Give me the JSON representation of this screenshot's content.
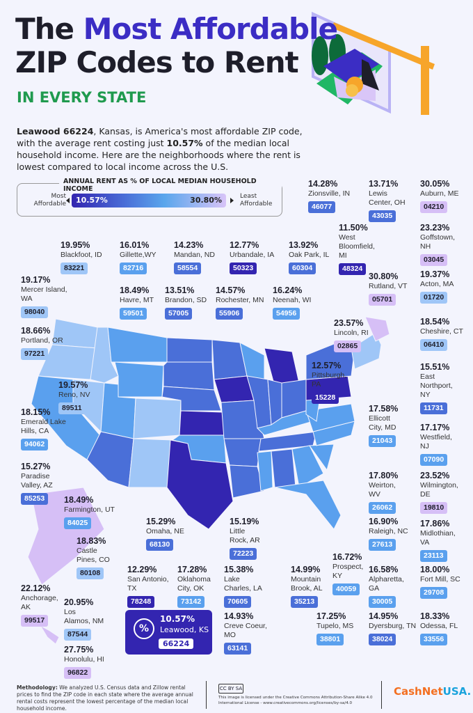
{
  "header": {
    "title_line1_pre": "The ",
    "title_line1_accent": "Most Affordable",
    "title_line2": "ZIP Codes to Rent",
    "subtitle": "IN EVERY STATE",
    "intro": [
      {
        "text": "Leawood 66224",
        "bold": true
      },
      {
        "text": ", Kansas, is America's most affordable ZIP code, with the average rent costing just ",
        "bold": false
      },
      {
        "text": "10.57%",
        "bold": true
      },
      {
        "text": " of the median local household income. Here are the neighborhoods where the rent is lowest compared to local income across the U.S.",
        "bold": false
      }
    ]
  },
  "legend": {
    "title": "ANNUAL RENT AS % OF LOCAL MEDIAN HOUSEHOLD INCOME",
    "left_label": "Most\nAffordable",
    "right_label": "Least\nAffordable",
    "min": "10.57%",
    "max": "30.80%"
  },
  "colors": {
    "background": "#f3f4fd",
    "accent": "#3b2dc4",
    "green": "#1f9a4e",
    "scale_low": "#3325b0",
    "scale_mid": "#5aa6ec",
    "scale_high": "#d8c4f8"
  },
  "chart_data": {
    "type": "choropleth-map",
    "title": "The Most Affordable ZIP Codes to Rent in Every State",
    "value_label": "Annual rent as % of local median household income",
    "range": [
      10.57,
      30.8
    ],
    "entries": [
      {
        "pct": "19.95%",
        "value": 19.95,
        "place": "Blackfoot, ID",
        "zip": "83221"
      },
      {
        "pct": "16.01%",
        "value": 16.01,
        "place": "Gillette,WY",
        "zip": "82716"
      },
      {
        "pct": "14.23%",
        "value": 14.23,
        "place": "Mandan, ND",
        "zip": "58554"
      },
      {
        "pct": "12.77%",
        "value": 12.77,
        "place": "Urbandale, IA",
        "zip": "50323"
      },
      {
        "pct": "13.92%",
        "value": 13.92,
        "place": "Oak Park, IL",
        "zip": "60304"
      },
      {
        "pct": "14.28%",
        "value": 14.28,
        "place": "Zionsville, IN",
        "zip": "46077"
      },
      {
        "pct": "11.50%",
        "value": 11.5,
        "place": "West\nBloomfield,\nMI",
        "zip": "48324"
      },
      {
        "pct": "13.71%",
        "value": 13.71,
        "place": "Lewis\nCenter, OH",
        "zip": "43035"
      },
      {
        "pct": "30.05%",
        "value": 30.05,
        "place": "Auburn, ME",
        "zip": "04210"
      },
      {
        "pct": "23.23%",
        "value": 23.23,
        "place": "Goffstown,\nNH",
        "zip": "03045"
      },
      {
        "pct": "19.37%",
        "value": 19.37,
        "place": "Acton, MA",
        "zip": "01720"
      },
      {
        "pct": "18.54%",
        "value": 18.54,
        "place": "Cheshire, CT",
        "zip": "06410"
      },
      {
        "pct": "15.51%",
        "value": 15.51,
        "place": "East\nNorthport,\nNY",
        "zip": "11731"
      },
      {
        "pct": "17.17%",
        "value": 17.17,
        "place": "Westfield,\nNJ",
        "zip": "07090"
      },
      {
        "pct": "23.52%",
        "value": 23.52,
        "place": "Wilmington,\nDE",
        "zip": "19810"
      },
      {
        "pct": "17.86%",
        "value": 17.86,
        "place": "Midlothian,\nVA",
        "zip": "23113"
      },
      {
        "pct": "18.00%",
        "value": 18.0,
        "place": "Fort Mill, SC",
        "zip": "29708"
      },
      {
        "pct": "18.33%",
        "value": 18.33,
        "place": "Odessa, FL",
        "zip": "33556"
      },
      {
        "pct": "30.80%",
        "value": 30.8,
        "place": "Rutland, VT",
        "zip": "05701"
      },
      {
        "pct": "23.57%",
        "value": 23.57,
        "place": "Lincoln, RI",
        "zip": "02865"
      },
      {
        "pct": "12.57%",
        "value": 12.57,
        "place": "Pittsburgh,\nPA",
        "zip": "15228"
      },
      {
        "pct": "17.58%",
        "value": 17.58,
        "place": "Ellicott\nCity, MD",
        "zip": "21043"
      },
      {
        "pct": "17.80%",
        "value": 17.8,
        "place": "Weirton,\nWV",
        "zip": "26062"
      },
      {
        "pct": "16.90%",
        "value": 16.9,
        "place": "Raleigh, NC",
        "zip": "27613"
      },
      {
        "pct": "16.72%",
        "value": 16.72,
        "place": "Prospect, KY",
        "zip": "40059"
      },
      {
        "pct": "16.58%",
        "value": 16.58,
        "place": "Alpharetta,\nGA",
        "zip": "30005"
      },
      {
        "pct": "14.95%",
        "value": 14.95,
        "place": "Dyersburg, TN",
        "zip": "38024"
      },
      {
        "pct": "17.25%",
        "value": 17.25,
        "place": "Tupelo, MS",
        "zip": "38801"
      },
      {
        "pct": "14.99%",
        "value": 14.99,
        "place": "Mountain\nBrook, AL",
        "zip": "35213"
      },
      {
        "pct": "14.93%",
        "value": 14.93,
        "place": "Creve Coeur, MO",
        "zip": "63141"
      },
      {
        "pct": "15.38%",
        "value": 15.38,
        "place": "Lake\nCharles, LA",
        "zip": "70605"
      },
      {
        "pct": "15.19%",
        "value": 15.19,
        "place": "Little\nRock, AR",
        "zip": "72223"
      },
      {
        "pct": "17.28%",
        "value": 17.28,
        "place": "Oklahoma\nCity, OK",
        "zip": "73142"
      },
      {
        "pct": "12.29%",
        "value": 12.29,
        "place": "San Antonio,\nTX",
        "zip": "78248"
      },
      {
        "pct": "15.29%",
        "value": 15.29,
        "place": "Omaha, NE",
        "zip": "68130"
      },
      {
        "pct": "18.83%",
        "value": 18.83,
        "place": "Castle\nPines, CO",
        "zip": "80108"
      },
      {
        "pct": "18.49%",
        "value": 18.49,
        "place": "Farmington, UT",
        "zip": "84025"
      },
      {
        "pct": "15.27%",
        "value": 15.27,
        "place": "Paradise\nValley, AZ",
        "zip": "85253"
      },
      {
        "pct": "18.15%",
        "value": 18.15,
        "place": "Emerald Lake\nHills, CA",
        "zip": "94062"
      },
      {
        "pct": "19.57%",
        "value": 19.57,
        "place": "Reno, NV",
        "zip": "89511"
      },
      {
        "pct": "18.66%",
        "value": 18.66,
        "place": "Portland, OR",
        "zip": "97221"
      },
      {
        "pct": "19.17%",
        "value": 19.17,
        "place": "Mercer Island, WA",
        "zip": "98040"
      },
      {
        "pct": "18.49%",
        "value": 18.49,
        "place": "Havre, MT",
        "zip": "59501"
      },
      {
        "pct": "13.51%",
        "value": 13.51,
        "place": "Brandon, SD",
        "zip": "57005"
      },
      {
        "pct": "14.57%",
        "value": 14.57,
        "place": "Rochester, MN",
        "zip": "55906"
      },
      {
        "pct": "16.24%",
        "value": 16.24,
        "place": "Neenah, WI",
        "zip": "54956"
      },
      {
        "pct": "22.12%",
        "value": 22.12,
        "place": "Anchorage, AK",
        "zip": "99517"
      },
      {
        "pct": "20.95%",
        "value": 20.95,
        "place": "Los\nAlamos, NM",
        "zip": "87544"
      },
      {
        "pct": "27.75%",
        "value": 27.75,
        "place": "Honolulu, HI",
        "zip": "96822"
      }
    ],
    "featured": {
      "pct": "10.57%",
      "value": 10.57,
      "place": "Leawood, KS",
      "zip": "66224",
      "icon": "percent-icon"
    }
  },
  "footer": {
    "methodology_label": "Methodology:",
    "methodology_text": " We analyzed U.S. Census data and Zillow rental prices to find the ZIP code in each state where the average annual rental costs represent the lowest percentage of the median local household income.",
    "cc_badge": "CC BY SA",
    "license": "This image is licensed under the Creative Commons Attribution-Share Alike 4.0 International License - www.creativecommons.org/licenses/by-sa/4.0",
    "logo_a": "CashNet",
    "logo_b": "USA."
  }
}
